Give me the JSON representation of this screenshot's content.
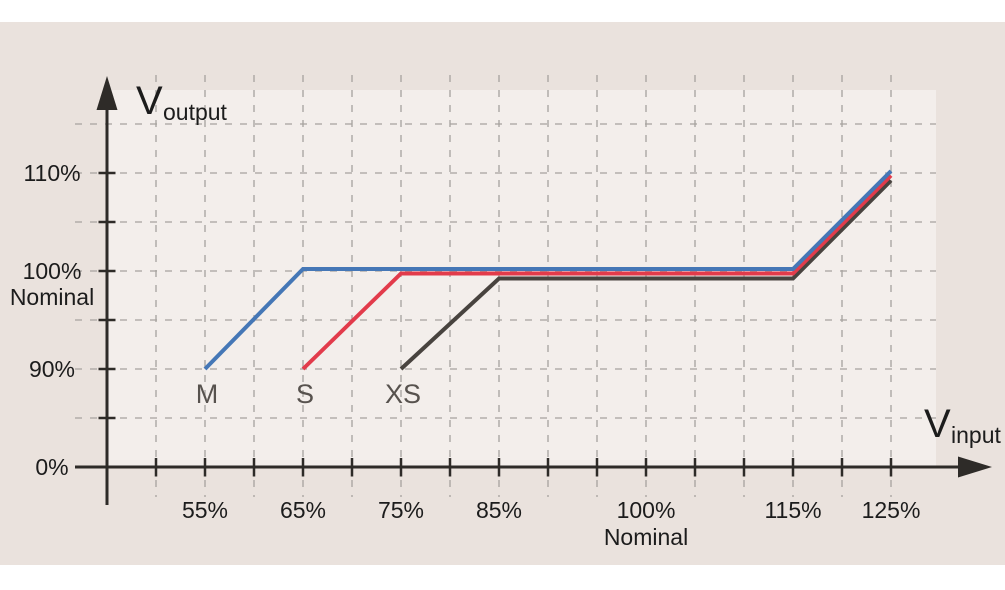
{
  "figure": {
    "page_background": "#ffffff",
    "panel_color": "#eae2dd",
    "plot_area_color": "#f3eeeb"
  },
  "chart_data": {
    "type": "line",
    "title": "",
    "xlabel": "V input (% of Nominal)",
    "ylabel": "V output (% of Nominal)",
    "x_axis": {
      "unit": "%",
      "range": [
        50,
        125
      ],
      "minor_tick_values": [
        50,
        55,
        60,
        65,
        70,
        75,
        80,
        85,
        90,
        95,
        100,
        105,
        110,
        115,
        120,
        125
      ],
      "labeled_ticks": [
        {
          "value": 55,
          "label": "55%"
        },
        {
          "value": 65,
          "label": "65%"
        },
        {
          "value": 75,
          "label": "75%"
        },
        {
          "value": 85,
          "label": "85%"
        },
        {
          "value": 100,
          "label": "100%",
          "sublabel": "Nominal"
        },
        {
          "value": 115,
          "label": "115%"
        },
        {
          "value": 125,
          "label": "125%"
        }
      ],
      "title_main": "V",
      "title_sub": "input"
    },
    "y_axis": {
      "unit": "%",
      "minor_tick_values": [
        85,
        90,
        95,
        100,
        105,
        110
      ],
      "labeled_ticks": [
        {
          "value": 110,
          "label": "110%"
        },
        {
          "value": 100,
          "label": "100%",
          "sublabel": "Nominal"
        },
        {
          "value": 90,
          "label": "90%"
        },
        {
          "value": 0,
          "label": "0%"
        }
      ],
      "title_main": "V",
      "title_sub": "output"
    },
    "grid": {
      "style": "dashed",
      "color": "#a6a29e",
      "x_values": [
        50,
        55,
        60,
        65,
        70,
        75,
        80,
        85,
        90,
        95,
        100,
        105,
        110,
        115,
        120,
        125
      ],
      "y_values": [
        85,
        90,
        95,
        100,
        105,
        110,
        115
      ]
    },
    "series": [
      {
        "name": "M",
        "color": "#4577b6",
        "points": [
          [
            55,
            90
          ],
          [
            65,
            100
          ],
          [
            115,
            100
          ],
          [
            125,
            110
          ]
        ]
      },
      {
        "name": "S",
        "color": "#e23b4b",
        "points": [
          [
            65,
            90
          ],
          [
            75,
            100
          ],
          [
            115,
            100
          ],
          [
            125,
            110
          ]
        ]
      },
      {
        "name": "XS",
        "color": "#48433f",
        "points": [
          [
            75,
            90
          ],
          [
            85,
            100
          ],
          [
            115,
            100
          ],
          [
            125,
            110
          ]
        ]
      }
    ],
    "legend_position": "inline-below-series-start",
    "axis_color": "#2e2b28",
    "text_color": "#1c1c1c",
    "series_label_color": "#57524e"
  }
}
